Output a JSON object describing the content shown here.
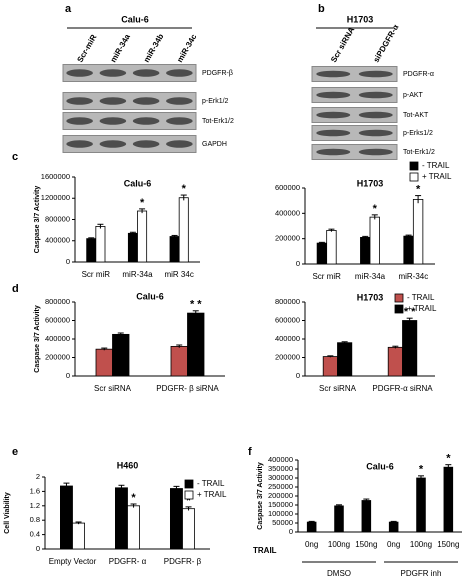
{
  "blots": [
    {
      "panel": "a",
      "title": "Calu-6",
      "lanes": [
        "Scr-miR",
        "miR-34a",
        "miR-34b",
        "miR-34c"
      ],
      "bands": [
        "PDGFR-β",
        "p-Erk1/2",
        "Tot-Erk1/2",
        "GAPDH"
      ]
    },
    {
      "panel": "b",
      "title": "H1703",
      "lanes": [
        "Scr siRNA",
        "siPDGFR-α"
      ],
      "bands": [
        "PDGFR-α",
        "p-AKT",
        "Tot-AKT",
        "p-Erks1/2",
        "Tot-Erk1/2"
      ]
    }
  ],
  "chart_data": [
    {
      "panel": "c",
      "type": "bar",
      "title": "Calu-6",
      "y_label": "Caspase 3/7 Activity",
      "categories": [
        "Scr miR",
        "miR-34a",
        "miR 34c"
      ],
      "series": [
        {
          "name": "- TRAIL",
          "color": "#000000",
          "values": [
            440000,
            540000,
            480000
          ],
          "errors": [
            15000,
            20000,
            20000
          ]
        },
        {
          "name": "+ TRAIL",
          "color": "#ffffff",
          "values": [
            670000,
            960000,
            1210000
          ],
          "errors": [
            40000,
            40000,
            50000
          ],
          "annotations": [
            null,
            "*",
            "*"
          ]
        }
      ],
      "ylim": [
        0,
        1600000
      ],
      "yticks": [
        0,
        400000,
        800000,
        1200000,
        1600000
      ]
    },
    {
      "type": "bar",
      "title": "H1703",
      "categories": [
        "Scr miR",
        "miR-34a",
        "miR-34c"
      ],
      "series": [
        {
          "name": "- TRAIL",
          "color": "#000000",
          "values": [
            165000,
            210000,
            220000
          ],
          "errors": [
            6000,
            8000,
            8000
          ]
        },
        {
          "name": "+ TRAIL",
          "color": "#ffffff",
          "values": [
            265000,
            370000,
            510000
          ],
          "errors": [
            10000,
            18000,
            30000
          ],
          "annotations": [
            null,
            "*",
            "*"
          ]
        }
      ],
      "ylim": [
        0,
        600000
      ],
      "yticks": [
        0,
        200000,
        400000,
        600000
      ],
      "legend": "top-right"
    },
    {
      "panel": "d",
      "type": "bar",
      "title": "Calu-6",
      "y_label": "Caspase 3/7 Activity",
      "categories": [
        "Scr siRNA",
        "PDGFR- β siRNA"
      ],
      "series": [
        {
          "name": "- TRAIL",
          "color": "#c0504d",
          "values": [
            290000,
            320000
          ],
          "errors": [
            12000,
            15000
          ]
        },
        {
          "name": "+ TRAIL",
          "color": "#000000",
          "values": [
            450000,
            680000
          ],
          "errors": [
            15000,
            25000
          ],
          "annotations": [
            null,
            "* *"
          ]
        }
      ],
      "ylim": [
        0,
        800000
      ],
      "yticks": [
        0,
        200000,
        400000,
        600000,
        800000
      ]
    },
    {
      "type": "bar",
      "title": "H1703",
      "categories": [
        "Scr siRNA",
        "PDGFR-α siRNA"
      ],
      "series": [
        {
          "name": "- TRAIL",
          "color": "#c0504d",
          "values": [
            210000,
            310000
          ],
          "errors": [
            8000,
            12000
          ]
        },
        {
          "name": "+ TRAIL",
          "color": "#000000",
          "values": [
            360000,
            600000
          ],
          "errors": [
            10000,
            25000
          ],
          "annotations": [
            null,
            "* *"
          ]
        }
      ],
      "ylim": [
        0,
        800000
      ],
      "yticks": [
        0,
        200000,
        400000,
        600000,
        800000
      ],
      "legend": "top-right"
    },
    {
      "panel": "e",
      "type": "bar",
      "title": "H460",
      "y_label": "Cell Viability",
      "categories": [
        "Empty Vector",
        "PDGFR- α",
        "PDGFR- β"
      ],
      "series": [
        {
          "name": "- TRAIL",
          "color": "#000000",
          "values": [
            1.75,
            1.7,
            1.68
          ],
          "errors": [
            0.08,
            0.07,
            0.06
          ]
        },
        {
          "name": "+ TRAIL",
          "color": "#ffffff",
          "values": [
            0.72,
            1.2,
            1.12
          ],
          "errors": [
            0.03,
            0.05,
            0.05
          ],
          "annotations": [
            null,
            "*",
            "*"
          ]
        }
      ],
      "ylim": [
        0,
        2
      ],
      "yticks": [
        0,
        0.4,
        0.8,
        1.2,
        1.6,
        2
      ],
      "legend": "top-right"
    },
    {
      "panel": "f",
      "type": "bar",
      "title": "Calu-6",
      "y_label": "Caspase 3/7 Activity",
      "x_label": "TRAIL",
      "categories": [
        "0ng",
        "100ng",
        "150ng",
        "0ng",
        "100ng",
        "150ng"
      ],
      "groups": [
        "DMSO",
        "PDGFR inh"
      ],
      "series": [
        {
          "color": "#000000",
          "values": [
            55000,
            145000,
            175000,
            55000,
            300000,
            360000
          ],
          "errors": [
            4000,
            6000,
            8000,
            4000,
            12000,
            14000
          ],
          "annotations": [
            null,
            null,
            null,
            null,
            "*",
            "*"
          ]
        }
      ],
      "ylim": [
        0,
        400000
      ],
      "yticks": [
        0,
        50000,
        100000,
        150000,
        200000,
        250000,
        300000,
        350000,
        400000
      ]
    }
  ]
}
